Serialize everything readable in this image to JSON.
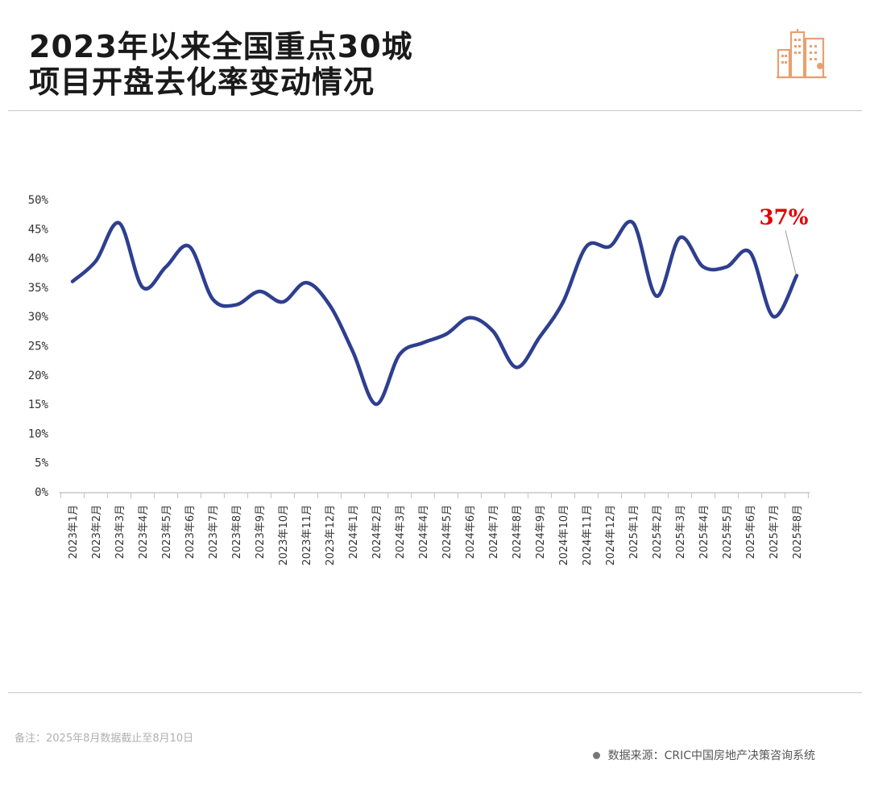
{
  "header": {
    "title_line1": "2023年以来全国重点30城",
    "title_line2": "项目开盘去化率变动情况",
    "logo_icon": "city-buildings-icon"
  },
  "colors": {
    "line": "#2e3f8f",
    "callout": "#e00000",
    "axis": "#c8c8c8",
    "text": "#333333",
    "logo": "#e8a070"
  },
  "chart_data": {
    "type": "line",
    "title": "2023年以来全国重点30城项目开盘去化率变动情况",
    "xlabel": "",
    "ylabel": "",
    "ylim": [
      0,
      50
    ],
    "yticks": [
      0,
      5,
      10,
      15,
      20,
      25,
      30,
      35,
      40,
      45,
      50
    ],
    "ytick_labels": [
      "0%",
      "5%",
      "10%",
      "15%",
      "20%",
      "25%",
      "30%",
      "35%",
      "40%",
      "45%",
      "50%"
    ],
    "grid": false,
    "categories": [
      "2023年1月",
      "2023年2月",
      "2023年3月",
      "2023年4月",
      "2023年5月",
      "2023年6月",
      "2023年7月",
      "2023年8月",
      "2023年9月",
      "2023年10月",
      "2023年11月",
      "2023年12月",
      "2024年1月",
      "2024年2月",
      "2024年3月",
      "2024年4月",
      "2024年5月",
      "2024年6月",
      "2024年7月",
      "2024年8月",
      "2024年9月",
      "2024年10月",
      "2024年11月",
      "2024年12月",
      "2025年1月",
      "2025年2月",
      "2025年3月",
      "2025年4月",
      "2025年5月",
      "2025年6月",
      "2025年7月",
      "2025年8月"
    ],
    "series": [
      {
        "name": "开盘去化率",
        "values": [
          36,
          39.5,
          46,
          35,
          38.5,
          42,
          33,
          32,
          34.3,
          32.5,
          35.8,
          32,
          24,
          15,
          23.5,
          25.5,
          27,
          29.8,
          27.5,
          21.3,
          26.5,
          32.5,
          42,
          42,
          46,
          33.5,
          43.5,
          38.5,
          38.5,
          41,
          30,
          37
        ]
      }
    ],
    "annotation": {
      "label": "37%",
      "category": "2025年8月",
      "value": 37
    }
  },
  "footer": {
    "note": "备注：2025年8月数据截止至8月10日",
    "source": "数据来源：CRIC中国房地产决策咨询系统"
  }
}
